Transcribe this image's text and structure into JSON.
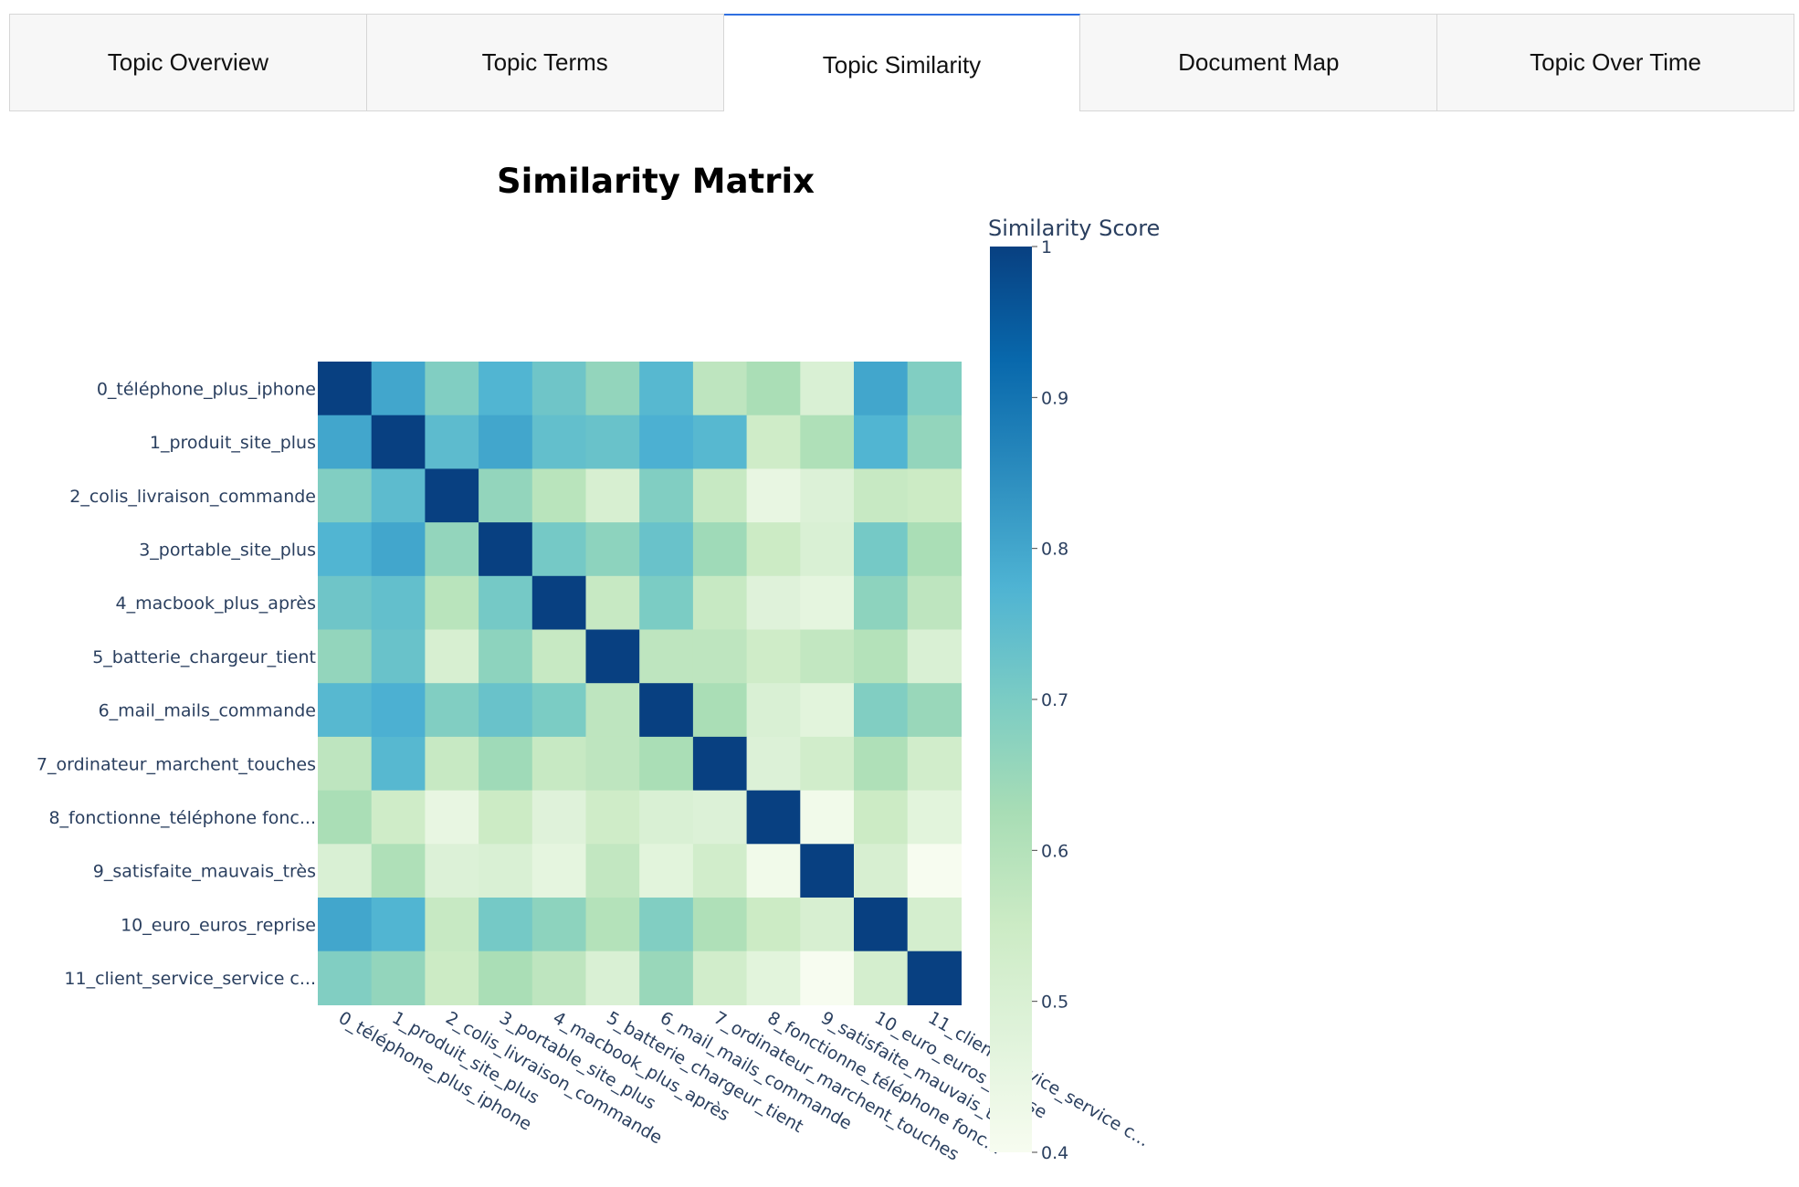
{
  "tabs": [
    {
      "label": "Topic Overview"
    },
    {
      "label": "Topic Terms"
    },
    {
      "label": "Topic Similarity"
    },
    {
      "label": "Document Map"
    },
    {
      "label": "Topic Over Time"
    }
  ],
  "active_tab": 2,
  "chart_data": {
    "type": "heatmap",
    "title": "Similarity Matrix",
    "xlabel": "",
    "ylabel": "",
    "colorscale": "GnBu",
    "colorbar": {
      "title": "Similarity Score",
      "range": [
        0.4,
        1
      ],
      "ticks": [
        1,
        0.9,
        0.8,
        0.7,
        0.6,
        0.5,
        0.4
      ]
    },
    "x": [
      "0_téléphone_plus_iphone",
      "1_produit_site_plus",
      "2_colis_livraison_commande",
      "3_portable_site_plus",
      "4_macbook_plus_après",
      "5_batterie_chargeur_tient",
      "6_mail_mails_commande",
      "7_ordinateur_marchent_touches",
      "8_fonctionne_téléphone fonc...",
      "9_satisfaite_mauvais_très",
      "10_euro_euros_reprise",
      "11_client_service_service c..."
    ],
    "y": [
      "0_téléphone_plus_iphone",
      "1_produit_site_plus",
      "2_colis_livraison_commande",
      "3_portable_site_plus",
      "4_macbook_plus_après",
      "5_batterie_chargeur_tient",
      "6_mail_mails_commande",
      "7_ordinateur_marchent_touches",
      "8_fonctionne_téléphone fonc...",
      "9_satisfaite_mauvais_très",
      "10_euro_euros_reprise",
      "11_client_service_service c..."
    ],
    "z": [
      [
        1.0,
        0.8,
        0.69,
        0.77,
        0.72,
        0.66,
        0.76,
        0.58,
        0.62,
        0.5,
        0.8,
        0.69
      ],
      [
        0.8,
        1.0,
        0.75,
        0.8,
        0.74,
        0.73,
        0.78,
        0.76,
        0.54,
        0.61,
        0.77,
        0.66
      ],
      [
        0.69,
        0.75,
        1.0,
        0.66,
        0.59,
        0.51,
        0.69,
        0.56,
        0.45,
        0.49,
        0.56,
        0.55
      ],
      [
        0.77,
        0.8,
        0.66,
        1.0,
        0.71,
        0.67,
        0.73,
        0.64,
        0.55,
        0.5,
        0.71,
        0.62
      ],
      [
        0.72,
        0.74,
        0.59,
        0.71,
        1.0,
        0.56,
        0.7,
        0.56,
        0.48,
        0.46,
        0.67,
        0.58
      ],
      [
        0.66,
        0.73,
        0.51,
        0.67,
        0.56,
        1.0,
        0.58,
        0.58,
        0.54,
        0.57,
        0.6,
        0.5
      ],
      [
        0.76,
        0.78,
        0.69,
        0.73,
        0.7,
        0.58,
        1.0,
        0.62,
        0.5,
        0.47,
        0.69,
        0.65
      ],
      [
        0.58,
        0.76,
        0.56,
        0.64,
        0.56,
        0.58,
        0.62,
        1.0,
        0.49,
        0.53,
        0.61,
        0.53
      ],
      [
        0.62,
        0.54,
        0.45,
        0.55,
        0.48,
        0.54,
        0.5,
        0.49,
        1.0,
        0.42,
        0.55,
        0.47
      ],
      [
        0.5,
        0.61,
        0.49,
        0.5,
        0.46,
        0.57,
        0.47,
        0.53,
        0.42,
        1.0,
        0.51,
        0.39
      ],
      [
        0.8,
        0.77,
        0.56,
        0.71,
        0.67,
        0.6,
        0.69,
        0.61,
        0.55,
        0.51,
        1.0,
        0.52
      ],
      [
        0.69,
        0.66,
        0.55,
        0.62,
        0.58,
        0.5,
        0.65,
        0.53,
        0.47,
        0.39,
        0.52,
        1.0
      ]
    ]
  }
}
